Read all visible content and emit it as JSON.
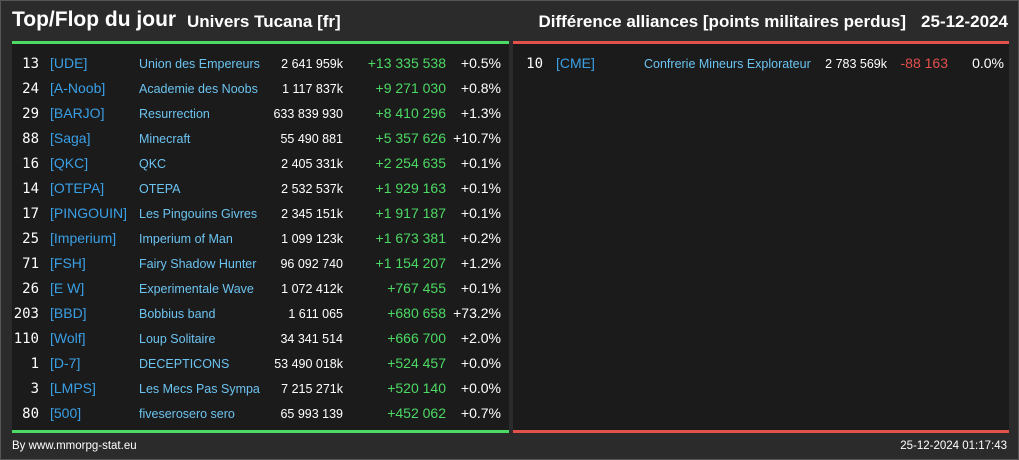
{
  "header": {
    "title": "Top/Flop du jour",
    "subtitle": "Univers Tucana [fr]",
    "metric": "Différence alliances [points militaires perdus]",
    "date": "25-12-2024"
  },
  "colors": {
    "gain": "#4cd964",
    "loss": "#e2514c",
    "tag": "#3aa0e6",
    "name": "#6cc3f0",
    "panel_bg": "#1b1b1b",
    "page_bg": "#2b2b2b"
  },
  "top": [
    {
      "rank": "13",
      "tag": "[UDE]",
      "name": "Union des Empereurs",
      "points": "2 641 959k",
      "diff": "+13 335 538",
      "pct": "+0.5%"
    },
    {
      "rank": "24",
      "tag": "[A-Noob]",
      "name": "Academie des Noobs",
      "points": "1 117 837k",
      "diff": "+9 271 030",
      "pct": "+0.8%"
    },
    {
      "rank": "29",
      "tag": "[BARJO]",
      "name": "Resurrection",
      "points": "633 839 930",
      "diff": "+8 410 296",
      "pct": "+1.3%"
    },
    {
      "rank": "88",
      "tag": "[Saga]",
      "name": "Minecraft",
      "points": "55 490 881",
      "diff": "+5 357 626",
      "pct": "+10.7%"
    },
    {
      "rank": "16",
      "tag": "[QKC]",
      "name": "QKC",
      "points": "2 405 331k",
      "diff": "+2 254 635",
      "pct": "+0.1%"
    },
    {
      "rank": "14",
      "tag": "[OTEPA]",
      "name": "OTEPA",
      "points": "2 532 537k",
      "diff": "+1 929 163",
      "pct": "+0.1%"
    },
    {
      "rank": "17",
      "tag": "[PINGOUIN]",
      "name": "Les Pingouins Givres",
      "points": "2 345 151k",
      "diff": "+1 917 187",
      "pct": "+0.1%"
    },
    {
      "rank": "25",
      "tag": "[Imperium]",
      "name": "Imperium of Man",
      "points": "1 099 123k",
      "diff": "+1 673 381",
      "pct": "+0.2%"
    },
    {
      "rank": "71",
      "tag": "[FSH]",
      "name": "Fairy Shadow Hunter",
      "points": "96 092 740",
      "diff": "+1 154 207",
      "pct": "+1.2%"
    },
    {
      "rank": "26",
      "tag": "[E W]",
      "name": "Experimentale Wave",
      "points": "1 072 412k",
      "diff": "+767 455",
      "pct": "+0.1%"
    },
    {
      "rank": "203",
      "tag": "[BBD]",
      "name": "Bobbius band",
      "points": "1 611 065",
      "diff": "+680 658",
      "pct": "+73.2%"
    },
    {
      "rank": "110",
      "tag": "[Wolf]",
      "name": "Loup Solitaire",
      "points": "34 341 514",
      "diff": "+666 700",
      "pct": "+2.0%"
    },
    {
      "rank": "1",
      "tag": "[D-7]",
      "name": "DECEPTICONS",
      "points": "53 490 018k",
      "diff": "+524 457",
      "pct": "+0.0%"
    },
    {
      "rank": "3",
      "tag": "[LMPS]",
      "name": "Les Mecs Pas Sympa",
      "points": "7 215 271k",
      "diff": "+520 140",
      "pct": "+0.0%"
    },
    {
      "rank": "80",
      "tag": "[500]",
      "name": "fiveserosero sero",
      "points": "65 993 139",
      "diff": "+452 062",
      "pct": "+0.7%"
    }
  ],
  "flop": [
    {
      "rank": "10",
      "tag": "[CME]",
      "name": "Confrerie Mineurs Explorateur",
      "points": "2 783 569k",
      "diff": "-88 163",
      "pct": "0.0%"
    }
  ],
  "footer": {
    "source": "By www.mmorpg-stat.eu",
    "timestamp": "25-12-2024 01:17:43"
  }
}
